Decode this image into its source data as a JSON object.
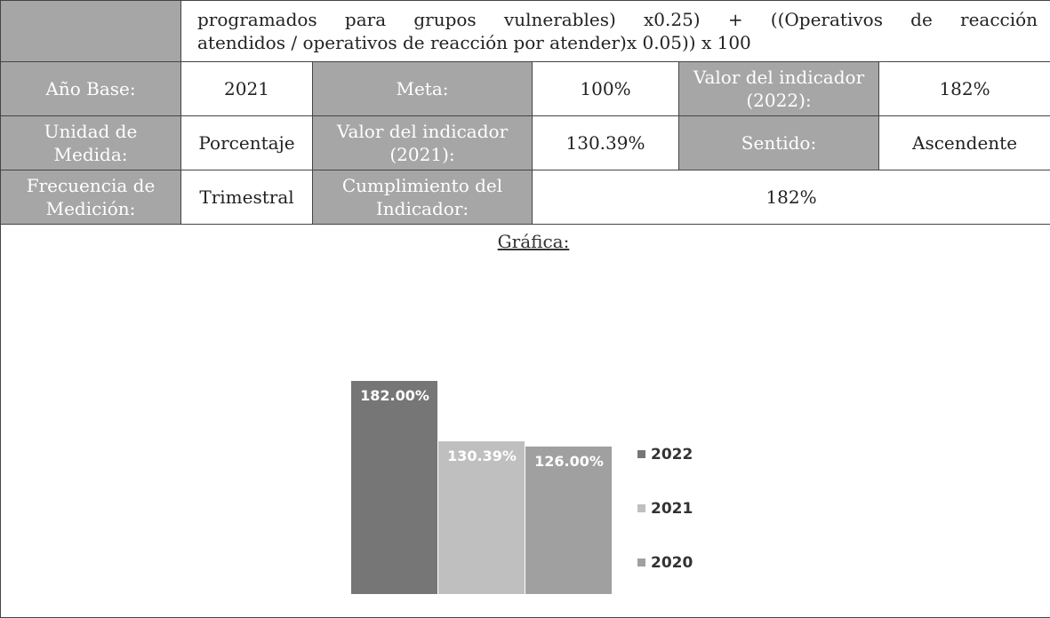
{
  "table": {
    "formula": [
      "programados para grupos vulnerables) x0.25) + ((Operativos de reacción",
      "atendidos / operativos de reacción por atender)x 0.05)) x 100"
    ],
    "rows": [
      [
        "Año Base:",
        "2021",
        "Meta:",
        "100%",
        "Valor del indicador (2022):",
        "182%"
      ],
      [
        "Unidad de Medida:",
        "Porcentaje",
        "Valor del indicador (2021):",
        "130.39%",
        "Sentido:",
        "Ascendente"
      ],
      [
        "Frecuencia de Medición:",
        "Trimestral",
        "Cumplimiento del Indicador:",
        "182%"
      ]
    ],
    "chart_label": "Gráfica:"
  },
  "chart_data": {
    "type": "bar",
    "series": [
      {
        "name": "2022",
        "color": "#767676",
        "values": [
          182
        ],
        "value_labels": [
          "182.00%"
        ]
      },
      {
        "name": "2021",
        "color": "#bfbfbf",
        "values": [
          130.39
        ],
        "value_labels": [
          "130.39%"
        ]
      },
      {
        "name": "2020",
        "color": "#a0a0a0",
        "values": [
          126
        ],
        "value_labels": [
          "126.00%"
        ]
      }
    ]
  }
}
